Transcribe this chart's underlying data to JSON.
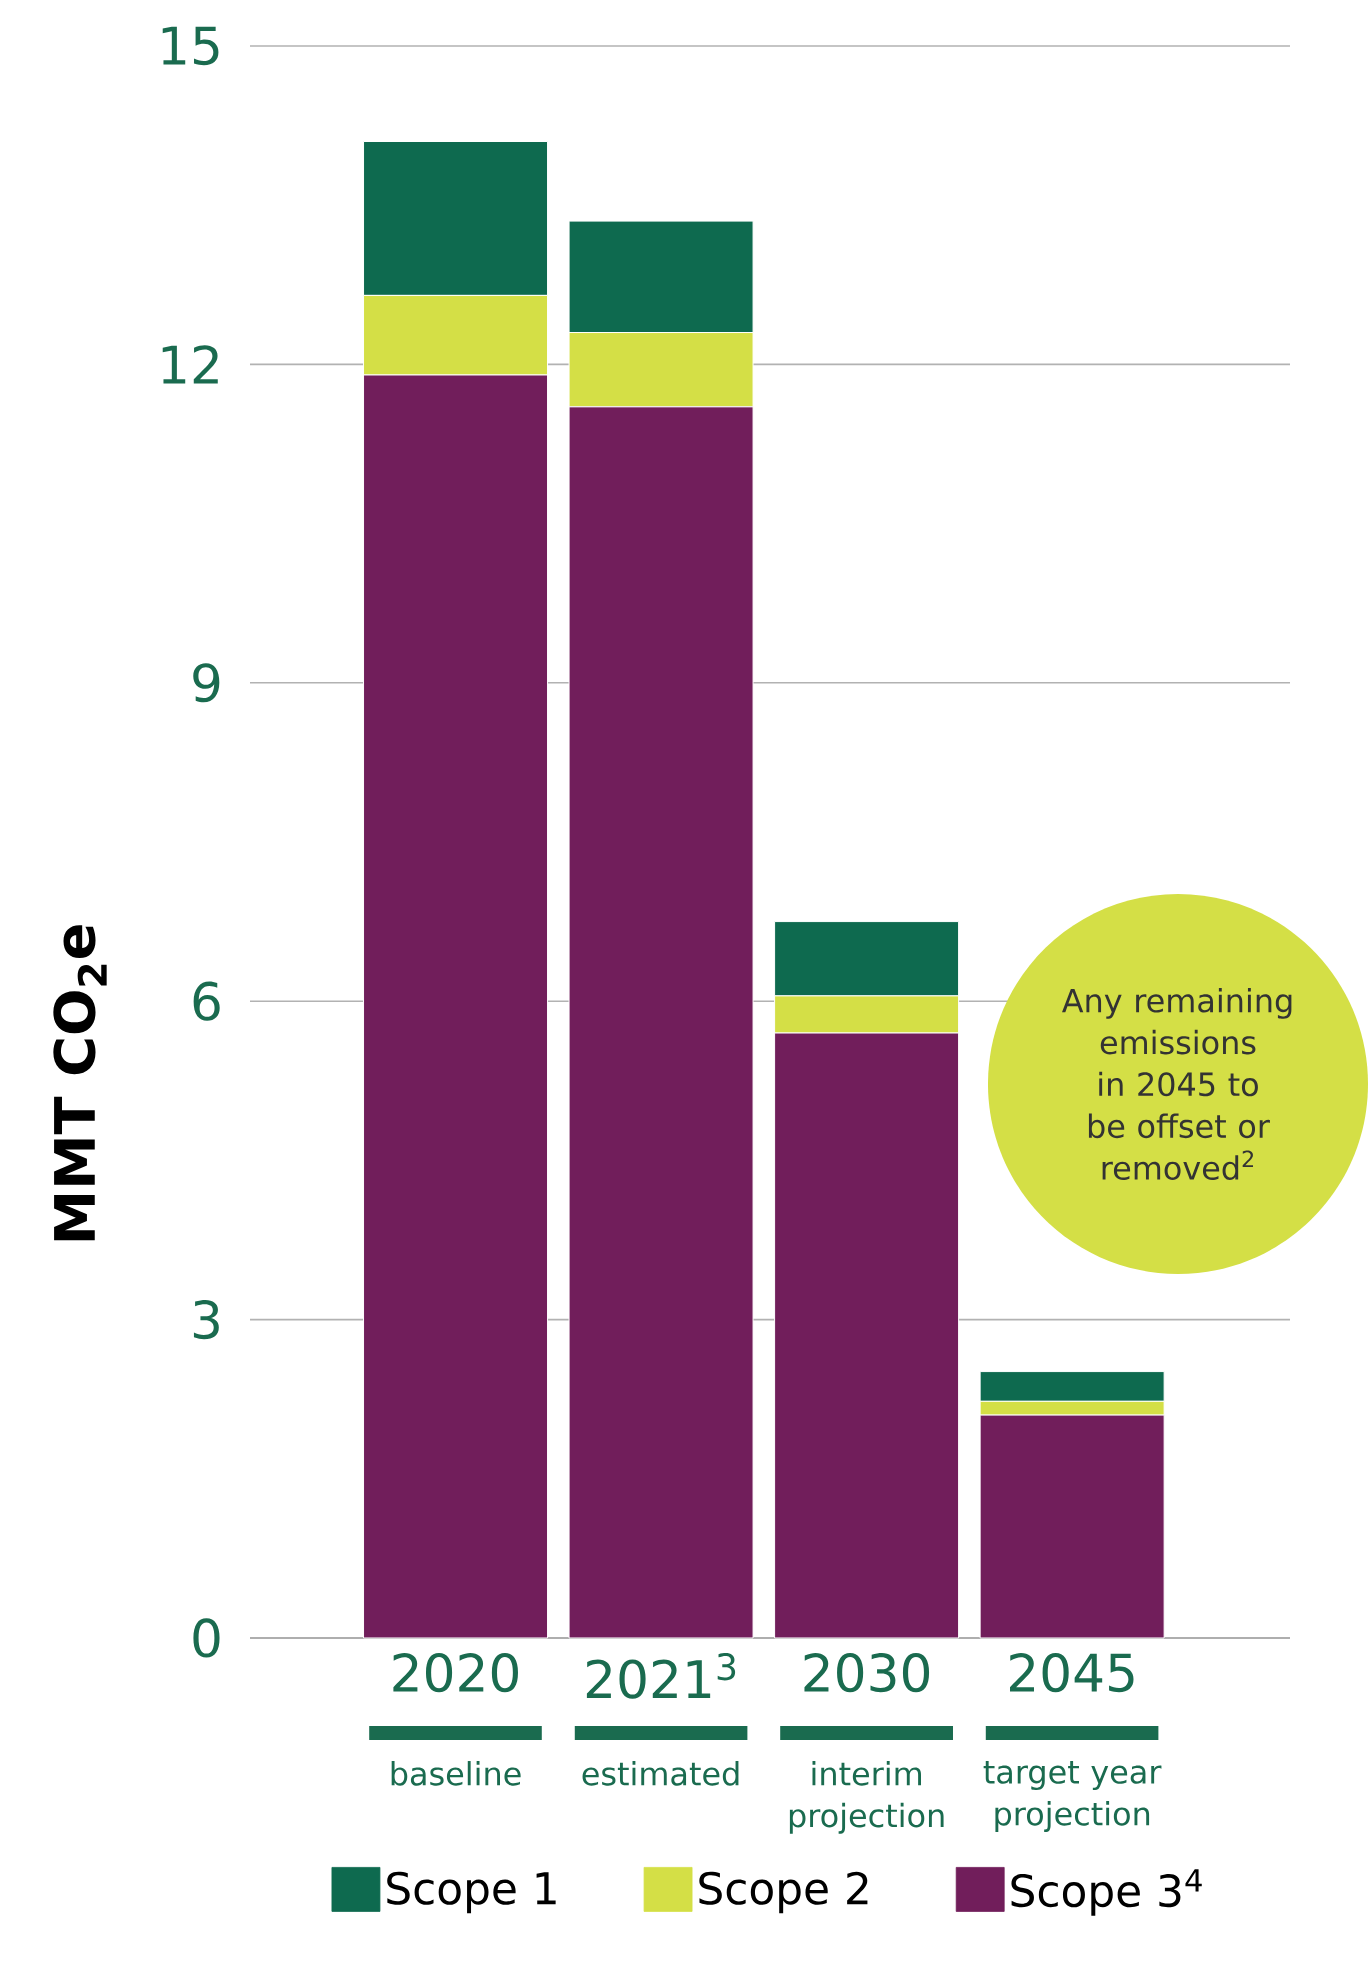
{
  "chart_data": {
    "type": "bar",
    "stacked": true,
    "categories": [
      "2020",
      "2021$^{3}$",
      "2030",
      "2045"
    ],
    "series": [
      {
        "name": "Scope 1",
        "color": "#0e6a4f",
        "values": [
          1.45,
          1.05,
          0.7,
          0.28
        ]
      },
      {
        "name": "Scope 2",
        "color": "#d4df46",
        "values": [
          0.75,
          0.7,
          0.35,
          0.13
        ]
      },
      {
        "name": "Scope 3$^{4}$",
        "color": "#711e5b",
        "values": [
          11.9,
          11.6,
          5.7,
          2.1
        ]
      }
    ],
    "ylabel": "MMT CO$_{2}$e",
    "ylim": [
      0,
      15
    ],
    "yticks": [
      0,
      3,
      6,
      9,
      12,
      15
    ],
    "grid": "y",
    "legend": "bottom",
    "annotations": [
      "baseline",
      "estimated",
      "interim projection",
      "target year projection",
      "Any remaining emissions in 2045 to be offset or removed$^{2}$"
    ]
  }
}
